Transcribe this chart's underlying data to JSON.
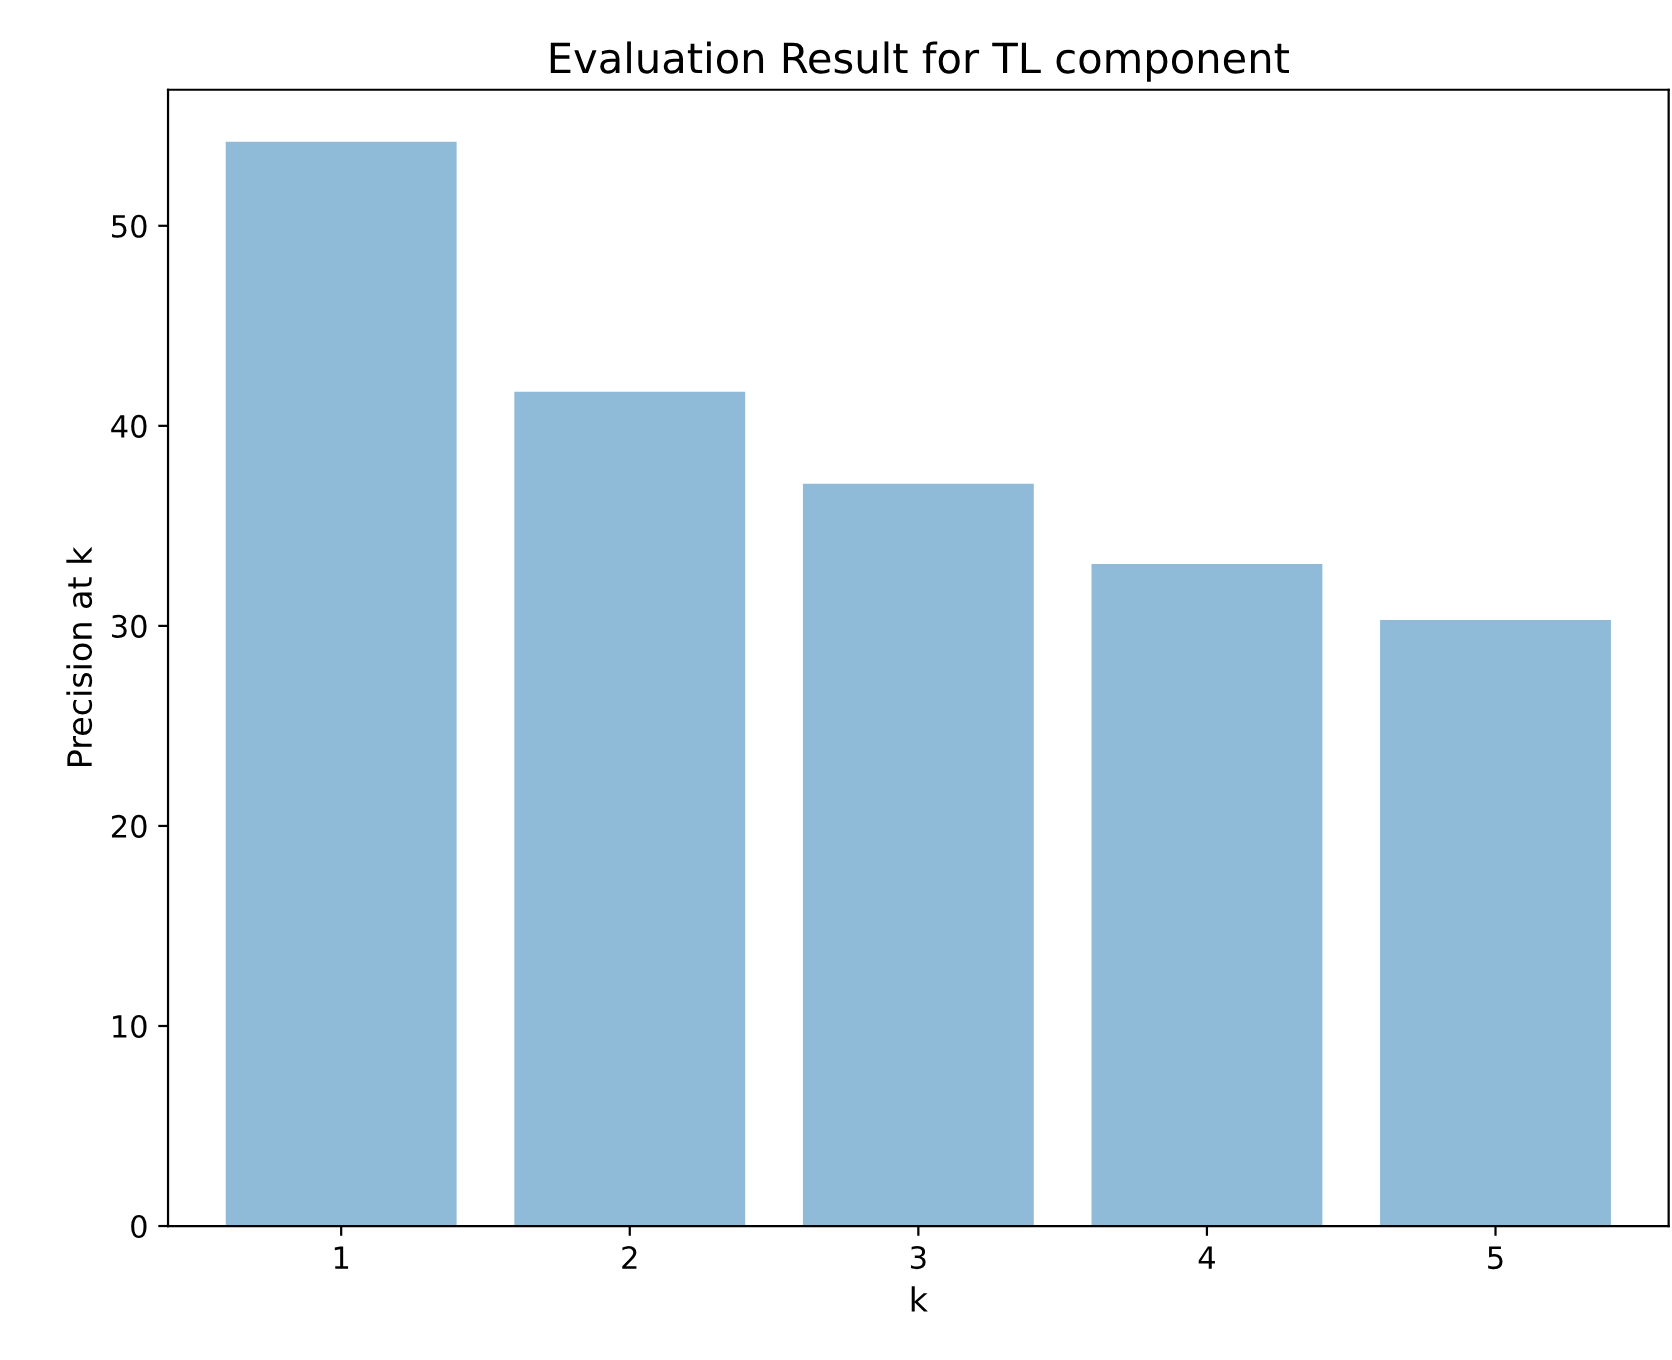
{
  "chart_data": {
    "type": "bar",
    "title": "Evaluation Result for TL component",
    "xlabel": "k",
    "ylabel": "Precision at k",
    "categories": [
      "1",
      "2",
      "3",
      "4",
      "5"
    ],
    "values": [
      54.2,
      41.7,
      37.1,
      33.1,
      30.3
    ],
    "color": "#8fbbd9",
    "ylim": [
      0,
      56.8
    ],
    "yticks": [
      0,
      10,
      20,
      30,
      40,
      50
    ],
    "grid": false,
    "legend": false
  }
}
